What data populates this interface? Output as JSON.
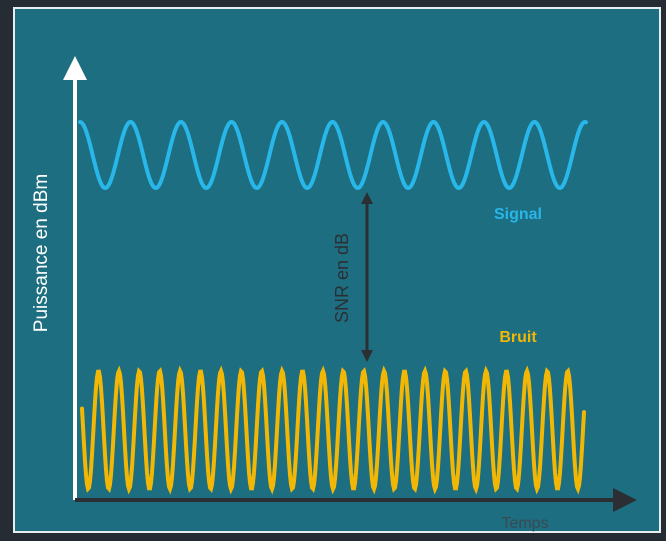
{
  "diagram": {
    "y_axis_label": "Puissance en dBm",
    "x_axis_label": "Temps",
    "snr_label": "SNR en dB",
    "signal_label": "Signal",
    "noise_label": "Bruit"
  }
}
